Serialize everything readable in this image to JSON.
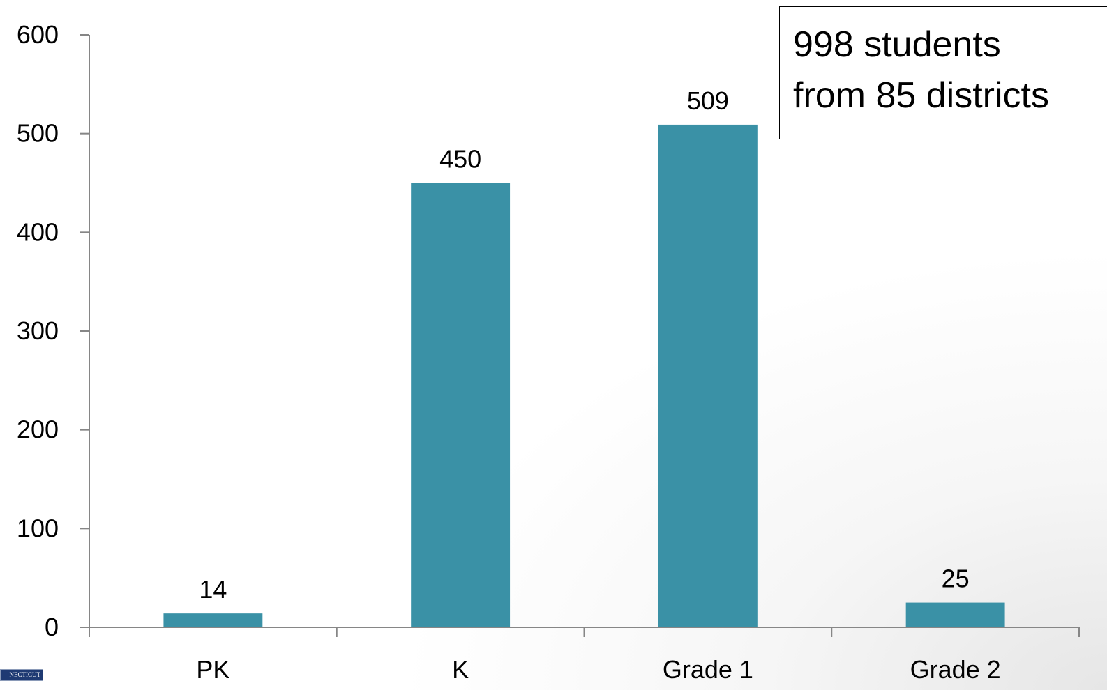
{
  "chart_data": {
    "type": "bar",
    "categories": [
      "PK",
      "K",
      "Grade 1",
      "Grade 2"
    ],
    "values": [
      14,
      450,
      509,
      25
    ],
    "data_labels": [
      "14",
      "450",
      "509",
      "25"
    ],
    "ylim": [
      0,
      600
    ],
    "yticks": [
      0,
      100,
      200,
      300,
      400,
      500,
      600
    ],
    "title": "",
    "xlabel": "",
    "ylabel": "",
    "grid": false,
    "legend": "none",
    "bar_color": "#3A91A6",
    "annotation": {
      "line1": "998 students",
      "line2": "from 85 districts"
    }
  },
  "logo": {
    "text": "NECTICUT"
  }
}
